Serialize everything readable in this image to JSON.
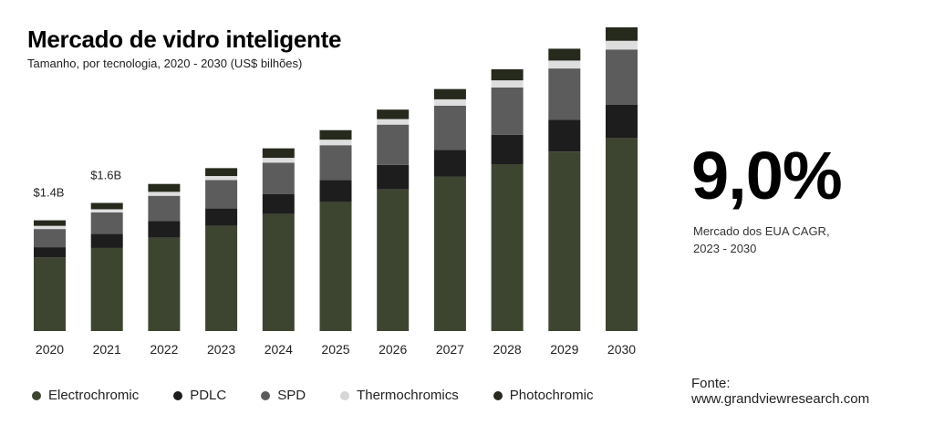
{
  "header": {
    "title": "Mercado de vidro inteligente",
    "subtitle": "Tamanho, por tecnologia, 2020 - 2030 (US$ bilhões)"
  },
  "stat": {
    "value": "9,0%",
    "label_line1": "Mercado dos EUA CAGR,",
    "label_line2": "2023 - 2030"
  },
  "source": {
    "label": "Fonte:",
    "url": "www.grandviewresearch.com"
  },
  "chart_data": {
    "type": "bar",
    "stacked": true,
    "categories": [
      "2020",
      "2021",
      "2022",
      "2023",
      "2024",
      "2025",
      "2026",
      "2027",
      "2028",
      "2029",
      "2030"
    ],
    "series": [
      {
        "name": "Electrochromic",
        "color": "#3d4530",
        "values": [
          0.93,
          1.05,
          1.18,
          1.33,
          1.48,
          1.63,
          1.79,
          1.95,
          2.11,
          2.27,
          2.44
        ]
      },
      {
        "name": "PDLC",
        "color": "#1d1d1d",
        "values": [
          0.13,
          0.18,
          0.21,
          0.22,
          0.25,
          0.28,
          0.31,
          0.34,
          0.37,
          0.4,
          0.42
        ]
      },
      {
        "name": "SPD",
        "color": "#5c5c5c",
        "values": [
          0.23,
          0.27,
          0.32,
          0.36,
          0.4,
          0.44,
          0.51,
          0.56,
          0.6,
          0.65,
          0.7
        ]
      },
      {
        "name": "Thermochromics",
        "color": "#dedede",
        "values": [
          0.04,
          0.04,
          0.05,
          0.05,
          0.06,
          0.07,
          0.07,
          0.08,
          0.09,
          0.1,
          0.11
        ]
      },
      {
        "name": "Photochromic",
        "color": "#252a1d",
        "values": [
          0.07,
          0.08,
          0.1,
          0.1,
          0.12,
          0.12,
          0.12,
          0.13,
          0.14,
          0.15,
          0.17
        ]
      }
    ],
    "data_labels": [
      {
        "category": "2020",
        "text": "$1.4B"
      },
      {
        "category": "2021",
        "text": "$1.6B"
      }
    ],
    "ylim": [
      0,
      4.0
    ],
    "grid": false,
    "legend_position": "bottom"
  }
}
